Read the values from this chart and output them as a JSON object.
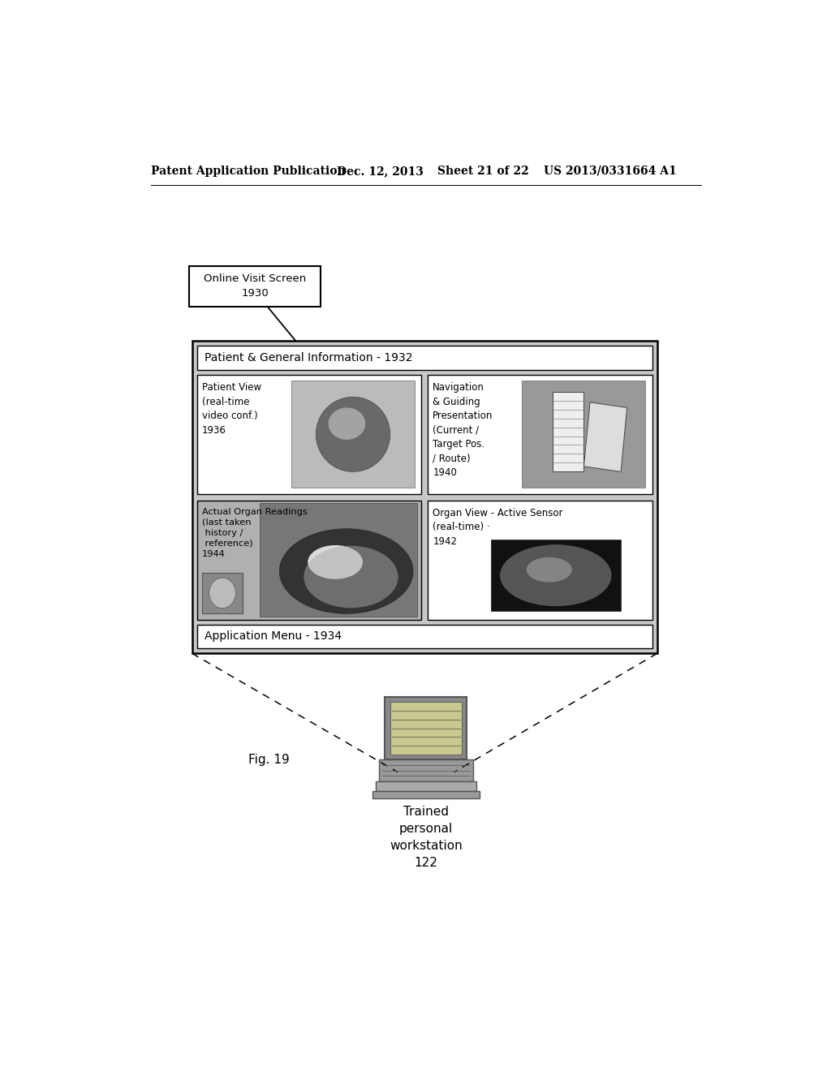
{
  "header_text": "Patent Application Publication",
  "header_date": "Dec. 12, 2013",
  "header_sheet": "Sheet 21 of 22",
  "header_patent": "US 2013/0331664 A1",
  "label_box_text": "Online Visit Screen\n1930",
  "main_box_label": "Patient & General Information - 1932",
  "cell_tl_title": "Patient View\n(real-time\nvideo conf.)\n1936",
  "cell_tr_title": "Navigation\n& Guiding\nPresentation\n(Current /\nTarget Pos.\n/ Route)\n1940",
  "cell_bl_title": "Actual Organ Readings\n(last taken\n history /\n reference)\n1944",
  "cell_br_title": "Organ View - Active Sensor\n(real-time) ·\n1942",
  "app_menu_label": "Application Menu - 1934",
  "fig_label": "Fig. 19",
  "workstation_label": "Trained\npersonal\nworkstation\n122",
  "bg_color": "#ffffff",
  "text_color": "#000000",
  "box_edge_color": "#000000",
  "main_box_fill": "#c8c8c8",
  "cell_fill_white": "#ffffff",
  "cell_bl_fill": "#b0b0b0",
  "img_gray": "#aaaaaa",
  "img_dark": "#222222"
}
